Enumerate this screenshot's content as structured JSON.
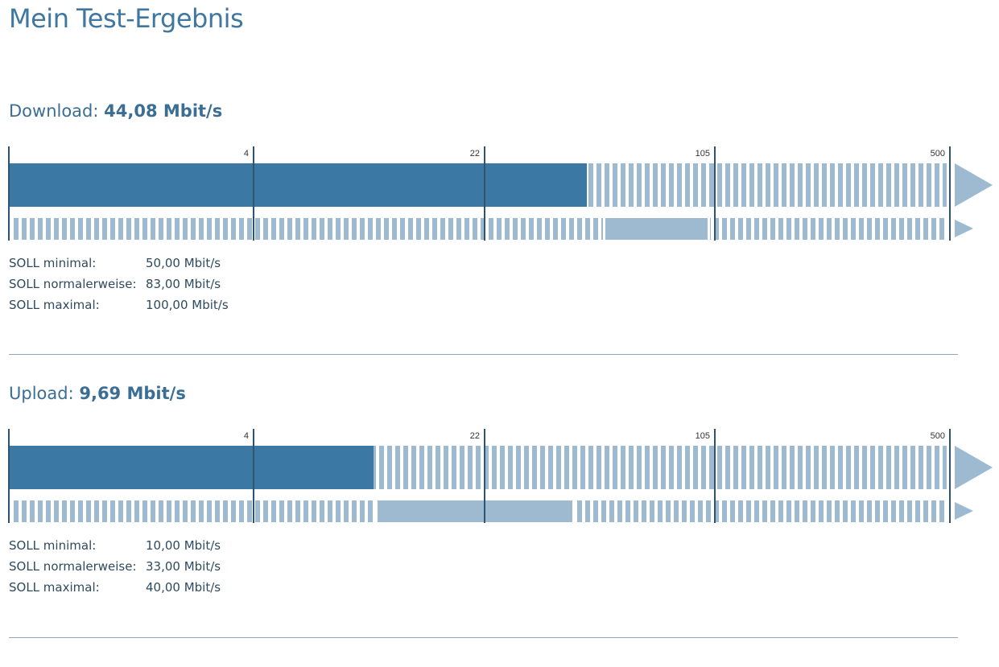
{
  "title": "Mein Test-Ergebnis",
  "scale_ticks": [
    4,
    22,
    105,
    500
  ],
  "colors": {
    "accent": "#3b78a3",
    "light": "#9dbad0",
    "tick": "#2d5573"
  },
  "sections": [
    {
      "label": "Download:",
      "value_text": "44,08 Mbit/s",
      "measured": 44.08,
      "soll_range": [
        50,
        100
      ],
      "soll": [
        {
          "label": "SOLL minimal:",
          "value": "50,00 Mbit/s"
        },
        {
          "label": "SOLL normalerweise:",
          "value": "83,00 Mbit/s"
        },
        {
          "label": "SOLL maximal:",
          "value": "100,00 Mbit/s"
        }
      ]
    },
    {
      "label": "Upload:",
      "value_text": "9,69 Mbit/s",
      "measured": 9.69,
      "soll_range": [
        10,
        40
      ],
      "soll": [
        {
          "label": "SOLL minimal:",
          "value": "10,00 Mbit/s"
        },
        {
          "label": "SOLL normalerweise:",
          "value": "33,00 Mbit/s"
        },
        {
          "label": "SOLL maximal:",
          "value": "40,00 Mbit/s"
        }
      ]
    }
  ]
}
